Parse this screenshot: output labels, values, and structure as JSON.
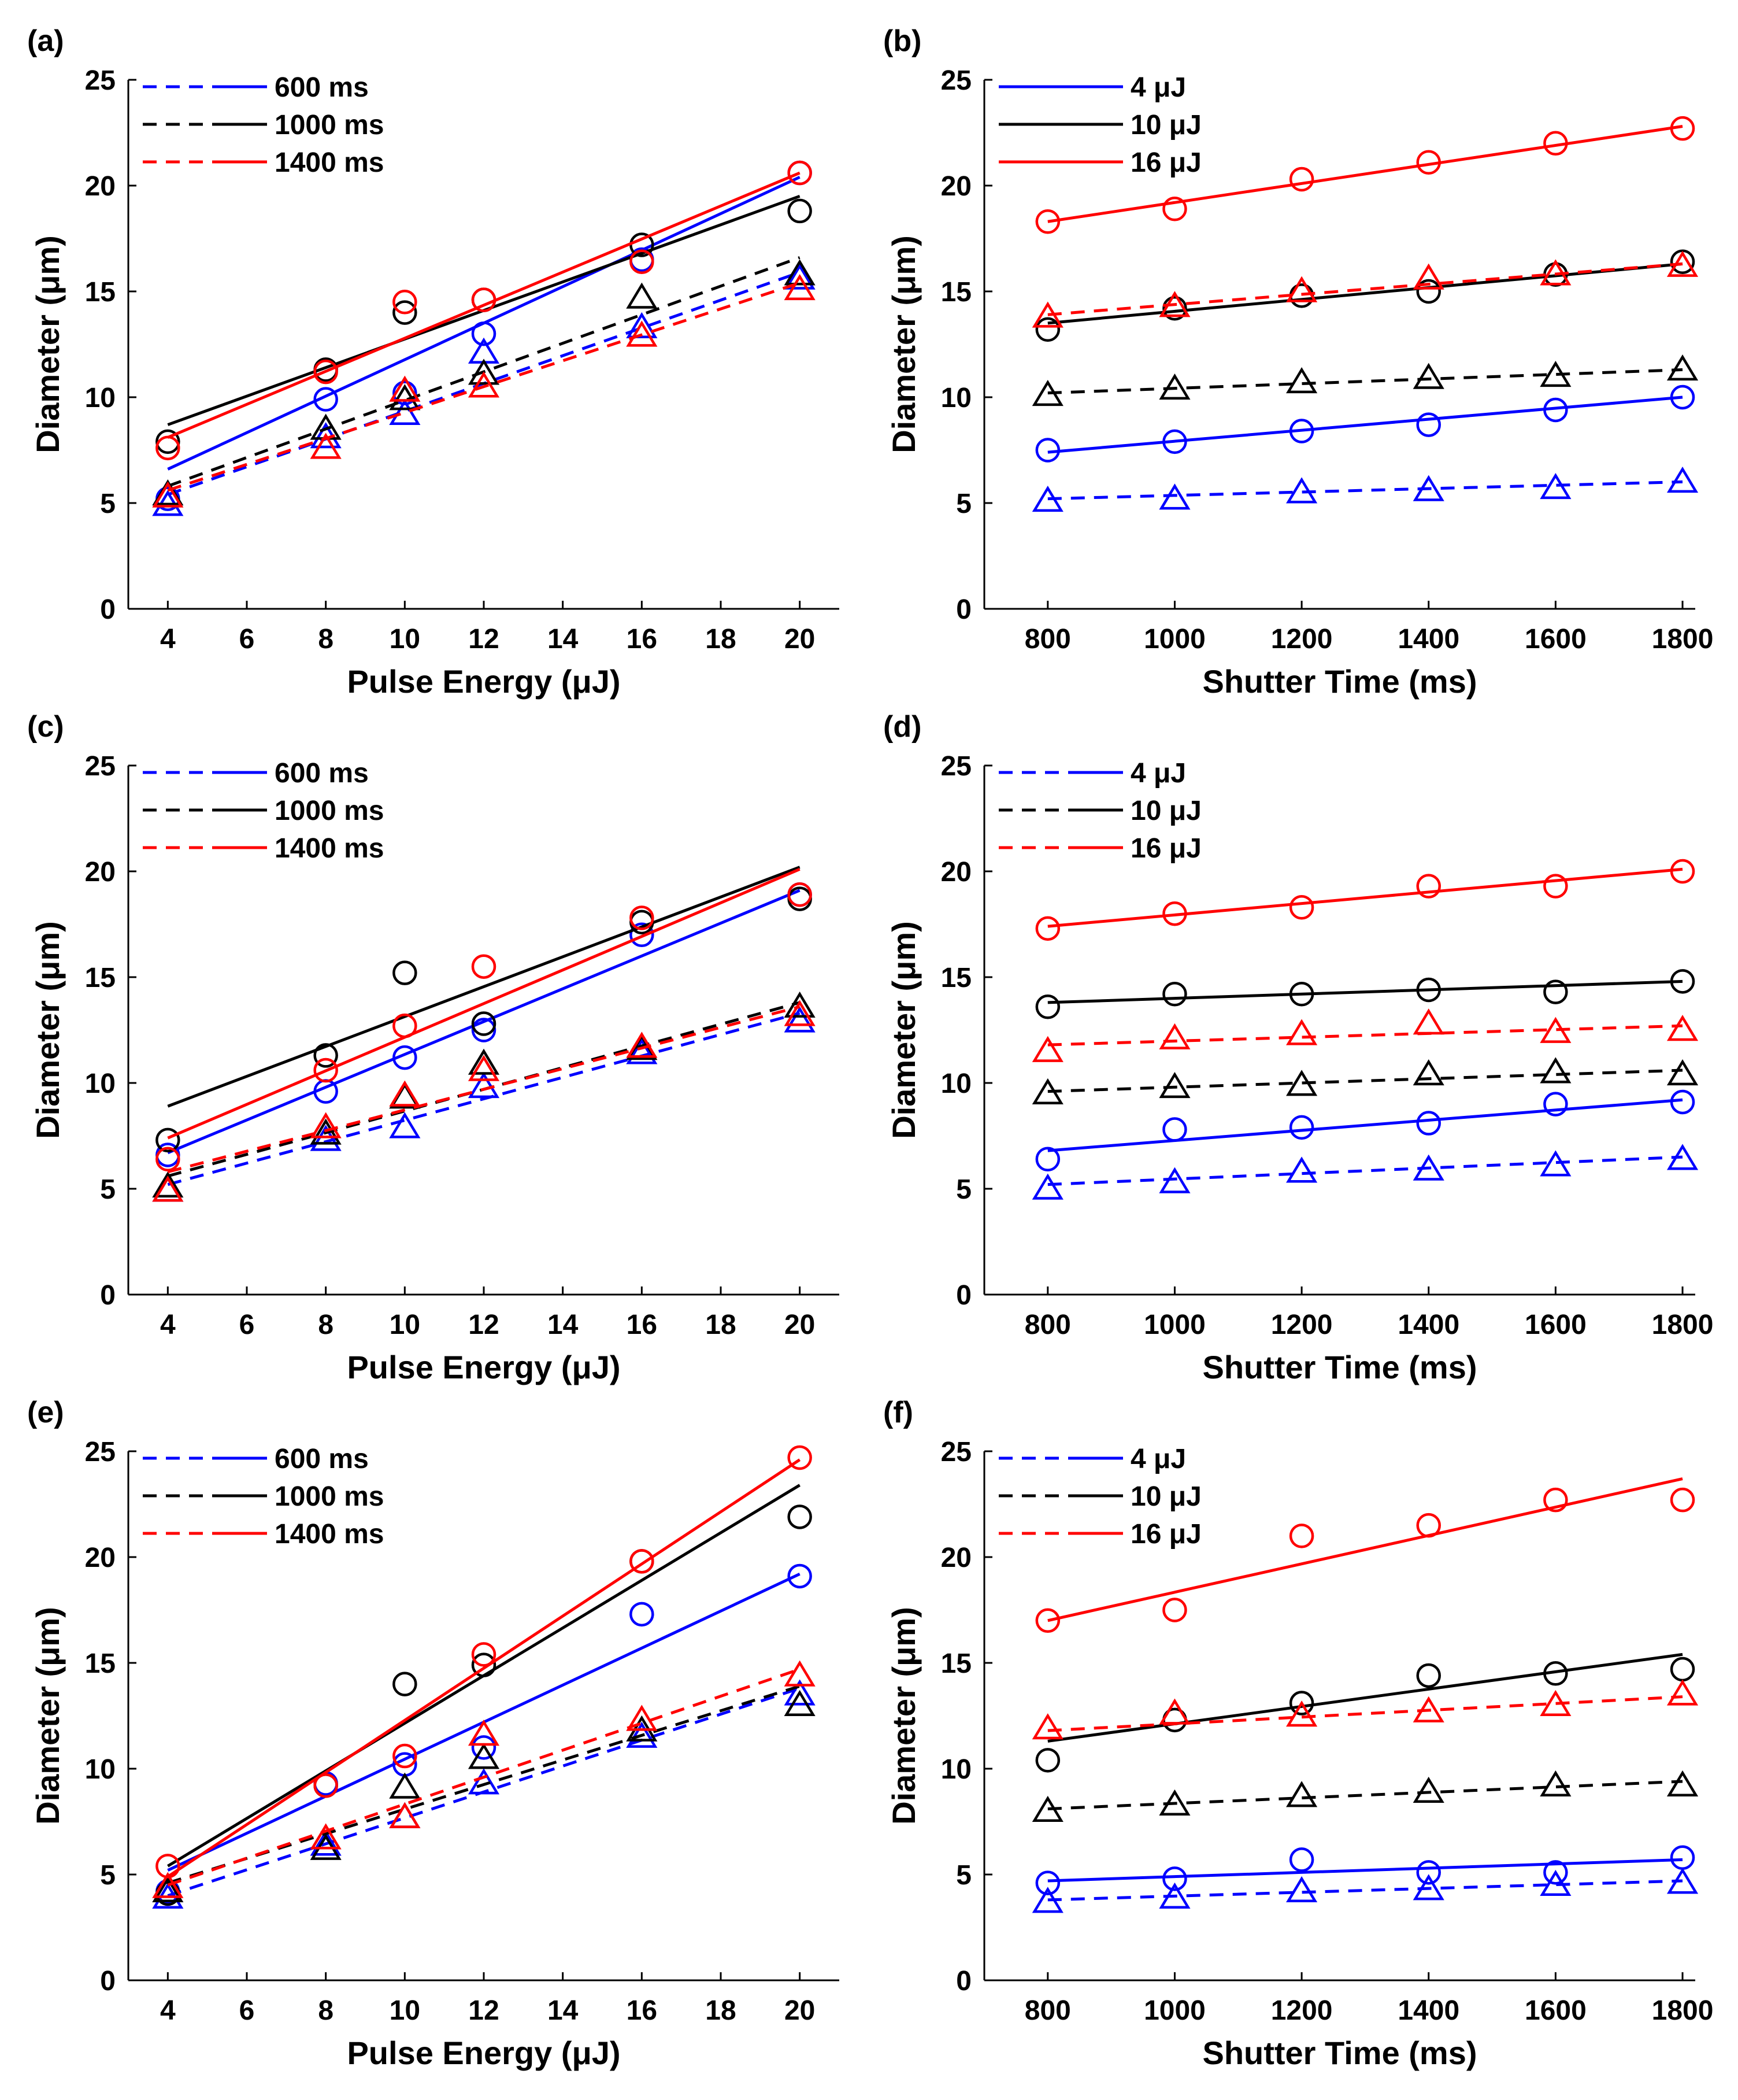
{
  "colors": {
    "blue": "#0000ff",
    "black": "#000000",
    "red": "#ff0000"
  },
  "chart_data": [
    {
      "panel_label": "(a)",
      "type": "line+scatter",
      "xlabel": "Pulse Energy (μJ)",
      "ylabel": "Diameter (μm)",
      "xlim": [
        3,
        21
      ],
      "ylim": [
        0,
        25
      ],
      "xticks": [
        4,
        6,
        8,
        10,
        12,
        14,
        16,
        18,
        20
      ],
      "yticks": [
        0,
        5,
        10,
        15,
        20,
        25
      ],
      "legend": {
        "position": "top-left",
        "entries": [
          "600 ms",
          "1000 ms",
          "1400 ms"
        ],
        "styles": [
          "dashed+solid",
          "dashed+solid",
          "dashed+solid"
        ]
      },
      "series": [
        {
          "name": "600 ms",
          "color": "blue",
          "x": [
            4,
            8,
            10,
            12,
            16,
            20
          ],
          "circles": [
            5.2,
            9.9,
            10.2,
            13.0,
            16.5,
            20.6
          ],
          "triangles": [
            4.9,
            8.1,
            9.2,
            12.1,
            13.3,
            15.6
          ],
          "fit_solid": [
            6.6,
            20.4
          ],
          "fit_dashed": [
            5.4,
            15.9
          ]
        },
        {
          "name": "1000 ms",
          "color": "black",
          "x": [
            4,
            8,
            10,
            12,
            16,
            20
          ],
          "circles": [
            7.9,
            11.3,
            14.0,
            14.6,
            17.2,
            18.8
          ],
          "triangles": [
            5.4,
            8.5,
            9.9,
            11.1,
            14.7,
            15.8
          ],
          "fit_solid": [
            8.7,
            19.5
          ],
          "fit_dashed": [
            5.8,
            16.6
          ]
        },
        {
          "name": "1400 ms",
          "color": "red",
          "x": [
            4,
            8,
            10,
            12,
            16,
            20
          ],
          "circles": [
            7.6,
            11.2,
            14.5,
            14.6,
            16.4,
            20.6
          ],
          "triangles": [
            5.3,
            7.6,
            10.3,
            10.5,
            12.9,
            15.1
          ],
          "fit_solid": [
            8.1,
            20.6
          ],
          "fit_dashed": [
            5.6,
            15.4
          ]
        }
      ]
    },
    {
      "panel_label": "(b)",
      "type": "line+scatter",
      "xlabel": "Shutter Time (ms)",
      "ylabel": "Diameter (μm)",
      "xlim": [
        700,
        1820
      ],
      "ylim": [
        0,
        25
      ],
      "xticks": [
        800,
        1000,
        1200,
        1400,
        1600,
        1800
      ],
      "yticks": [
        0,
        5,
        10,
        15,
        20,
        25
      ],
      "legend": {
        "position": "top-left",
        "entries": [
          "4 μJ",
          "10 μJ",
          "16 μJ"
        ],
        "styles": [
          "solid",
          "solid",
          "solid"
        ]
      },
      "series": [
        {
          "name": "4 μJ",
          "color": "blue",
          "x": [
            800,
            1000,
            1200,
            1400,
            1600,
            1800
          ],
          "circles": [
            7.5,
            7.9,
            8.4,
            8.7,
            9.4,
            10.0
          ],
          "triangles": [
            5.1,
            5.2,
            5.5,
            5.6,
            5.7,
            6.0
          ],
          "fit_solid": [
            7.4,
            10.0
          ],
          "fit_dashed": [
            5.2,
            6.0
          ]
        },
        {
          "name": "10 μJ",
          "color": "black",
          "x": [
            800,
            1000,
            1200,
            1400,
            1600,
            1800
          ],
          "circles": [
            13.2,
            14.2,
            14.8,
            15.0,
            15.8,
            16.4
          ],
          "triangles": [
            10.1,
            10.4,
            10.7,
            10.9,
            11.0,
            11.3
          ],
          "fit_solid": [
            13.5,
            16.3
          ],
          "fit_dashed": [
            10.2,
            11.3
          ]
        },
        {
          "name": "16 μJ",
          "color": "red",
          "x": [
            800,
            1000,
            1200,
            1400,
            1600,
            1800
          ],
          "circles": [
            18.3,
            18.9,
            20.3,
            21.1,
            22.0,
            22.7
          ],
          "triangles": [
            13.8,
            14.3,
            15.0,
            15.6,
            15.8,
            16.2
          ],
          "fit_solid": [
            18.3,
            22.8
          ],
          "fit_dashed": [
            13.9,
            16.3
          ]
        }
      ]
    },
    {
      "panel_label": "(c)",
      "type": "line+scatter",
      "xlabel": "Pulse Energy (μJ)",
      "ylabel": "Diameter (μm)",
      "xlim": [
        3,
        21
      ],
      "ylim": [
        0,
        25
      ],
      "xticks": [
        4,
        6,
        8,
        10,
        12,
        14,
        16,
        18,
        20
      ],
      "yticks": [
        0,
        5,
        10,
        15,
        20,
        25
      ],
      "legend": {
        "position": "top-left",
        "entries": [
          "600 ms",
          "1000 ms",
          "1400 ms"
        ],
        "styles": [
          "dashed+solid",
          "dashed+solid",
          "dashed+solid"
        ]
      },
      "series": [
        {
          "name": "600 ms",
          "color": "blue",
          "x": [
            4,
            8,
            10,
            12,
            16,
            20
          ],
          "circles": [
            6.6,
            9.6,
            11.2,
            12.5,
            17.0,
            18.9
          ],
          "triangles": [
            4.9,
            7.3,
            7.9,
            9.8,
            11.4,
            12.9
          ],
          "fit_solid": [
            6.7,
            19.1
          ],
          "fit_dashed": [
            5.2,
            13.3
          ]
        },
        {
          "name": "1000 ms",
          "color": "black",
          "x": [
            4,
            8,
            10,
            12,
            16,
            20
          ],
          "circles": [
            7.3,
            11.3,
            15.2,
            12.8,
            17.6,
            18.7
          ],
          "triangles": [
            5.1,
            7.6,
            9.3,
            10.9,
            11.6,
            13.6
          ],
          "fit_solid": [
            8.9,
            20.2
          ],
          "fit_dashed": [
            5.6,
            13.8
          ]
        },
        {
          "name": "1400 ms",
          "color": "red",
          "x": [
            4,
            8,
            10,
            12,
            16,
            20
          ],
          "circles": [
            6.4,
            10.6,
            12.7,
            15.5,
            17.8,
            18.9
          ],
          "triangles": [
            4.9,
            7.9,
            9.4,
            10.6,
            11.7,
            13.2
          ],
          "fit_solid": [
            7.4,
            20.1
          ],
          "fit_dashed": [
            5.8,
            13.6
          ]
        }
      ]
    },
    {
      "panel_label": "(d)",
      "type": "line+scatter",
      "xlabel": "Shutter Time (ms)",
      "ylabel": "Diameter (μm)",
      "xlim": [
        700,
        1820
      ],
      "ylim": [
        0,
        25
      ],
      "xticks": [
        800,
        1000,
        1200,
        1400,
        1600,
        1800
      ],
      "yticks": [
        0,
        5,
        10,
        15,
        20,
        25
      ],
      "legend": {
        "position": "top-left",
        "entries": [
          "4 μJ",
          "10 μJ",
          "16 μJ"
        ],
        "styles": [
          "dashed+solid",
          "dashed+solid",
          "dashed+solid"
        ]
      },
      "series": [
        {
          "name": "4 μJ",
          "color": "blue",
          "x": [
            800,
            1000,
            1200,
            1400,
            1600,
            1800
          ],
          "circles": [
            6.4,
            7.8,
            7.9,
            8.1,
            9.0,
            9.1
          ],
          "triangles": [
            5.0,
            5.3,
            5.8,
            5.9,
            6.1,
            6.4
          ],
          "fit_solid": [
            6.8,
            9.2
          ],
          "fit_dashed": [
            5.2,
            6.5
          ]
        },
        {
          "name": "10 μJ",
          "color": "black",
          "x": [
            800,
            1000,
            1200,
            1400,
            1600,
            1800
          ],
          "circles": [
            13.6,
            14.2,
            14.2,
            14.4,
            14.3,
            14.8
          ],
          "triangles": [
            9.5,
            9.8,
            9.9,
            10.4,
            10.5,
            10.4
          ],
          "fit_solid": [
            13.8,
            14.8
          ],
          "fit_dashed": [
            9.6,
            10.6
          ]
        },
        {
          "name": "16 μJ",
          "color": "red",
          "x": [
            800,
            1000,
            1200,
            1400,
            1600,
            1800
          ],
          "circles": [
            17.3,
            18.0,
            18.3,
            19.3,
            19.3,
            20.0
          ],
          "triangles": [
            11.5,
            12.1,
            12.3,
            12.8,
            12.4,
            12.5
          ],
          "fit_solid": [
            17.4,
            20.1
          ],
          "fit_dashed": [
            11.8,
            12.7
          ]
        }
      ]
    },
    {
      "panel_label": "(e)",
      "type": "line+scatter",
      "xlabel": "Pulse Energy (μJ)",
      "ylabel": "Diameter (μm)",
      "xlim": [
        3,
        21
      ],
      "ylim": [
        0,
        25
      ],
      "xticks": [
        4,
        6,
        8,
        10,
        12,
        14,
        16,
        18,
        20
      ],
      "yticks": [
        0,
        5,
        10,
        15,
        20,
        25
      ],
      "legend": {
        "position": "top-left",
        "entries": [
          "600 ms",
          "1000 ms",
          "1400 ms"
        ],
        "styles": [
          "dashed+solid",
          "dashed+solid",
          "dashed+solid"
        ]
      },
      "series": [
        {
          "name": "600 ms",
          "color": "blue",
          "x": [
            4,
            8,
            10,
            12,
            16,
            20
          ],
          "circles": [
            4.2,
            9.3,
            10.2,
            11.0,
            17.3,
            19.1
          ],
          "triangles": [
            3.9,
            6.4,
            7.7,
            9.3,
            11.5,
            13.5
          ],
          "fit_solid": [
            5.2,
            19.2
          ],
          "fit_dashed": [
            4.0,
            13.8
          ]
        },
        {
          "name": "1000 ms",
          "color": "black",
          "x": [
            4,
            8,
            10,
            12,
            16,
            20
          ],
          "circles": [
            4.1,
            9.2,
            14.0,
            14.9,
            19.8,
            21.9
          ],
          "triangles": [
            4.2,
            6.2,
            9.1,
            10.5,
            11.8,
            13.0
          ],
          "fit_solid": [
            5.4,
            23.4
          ],
          "fit_dashed": [
            4.6,
            13.9
          ]
        },
        {
          "name": "1400 ms",
          "color": "red",
          "x": [
            4,
            8,
            10,
            12,
            16,
            20
          ],
          "circles": [
            5.4,
            9.2,
            10.6,
            15.4,
            19.8,
            24.7
          ],
          "triangles": [
            4.4,
            6.7,
            7.7,
            11.6,
            12.3,
            14.4
          ],
          "fit_solid": [
            4.9,
            24.6
          ],
          "fit_dashed": [
            4.5,
            14.7
          ]
        }
      ]
    },
    {
      "panel_label": "(f)",
      "type": "line+scatter",
      "xlabel": "Shutter Time (ms)",
      "ylabel": "Diameter (μm)",
      "xlim": [
        700,
        1820
      ],
      "ylim": [
        0,
        25
      ],
      "xticks": [
        800,
        1000,
        1200,
        1400,
        1600,
        1800
      ],
      "yticks": [
        0,
        5,
        10,
        15,
        20,
        25
      ],
      "legend": {
        "position": "top-left",
        "entries": [
          "4 μJ",
          "10 μJ",
          "16 μJ"
        ],
        "styles": [
          "dashed+solid",
          "dashed+solid",
          "dashed+solid"
        ]
      },
      "series": [
        {
          "name": "4 μJ",
          "color": "blue",
          "x": [
            800,
            1000,
            1200,
            1400,
            1600,
            1800
          ],
          "circles": [
            4.6,
            4.8,
            5.7,
            5.1,
            5.1,
            5.8
          ],
          "triangles": [
            3.7,
            3.9,
            4.2,
            4.3,
            4.5,
            4.6
          ],
          "fit_solid": [
            4.7,
            5.7
          ],
          "fit_dashed": [
            3.8,
            4.7
          ]
        },
        {
          "name": "10 μJ",
          "color": "black",
          "x": [
            800,
            1000,
            1200,
            1400,
            1600,
            1800
          ],
          "circles": [
            10.4,
            12.3,
            13.1,
            14.4,
            14.5,
            14.7
          ],
          "triangles": [
            8.0,
            8.3,
            8.7,
            8.9,
            9.2,
            9.2
          ],
          "fit_solid": [
            11.3,
            15.4
          ],
          "fit_dashed": [
            8.1,
            9.4
          ]
        },
        {
          "name": "16 μJ",
          "color": "red",
          "x": [
            800,
            1000,
            1200,
            1400,
            1600,
            1800
          ],
          "circles": [
            17.0,
            17.5,
            21.0,
            21.5,
            22.7,
            22.7
          ],
          "triangles": [
            11.9,
            12.6,
            12.5,
            12.7,
            13.0,
            13.5
          ],
          "fit_solid": [
            17.0,
            23.7
          ],
          "fit_dashed": [
            11.8,
            13.4
          ]
        }
      ]
    }
  ]
}
